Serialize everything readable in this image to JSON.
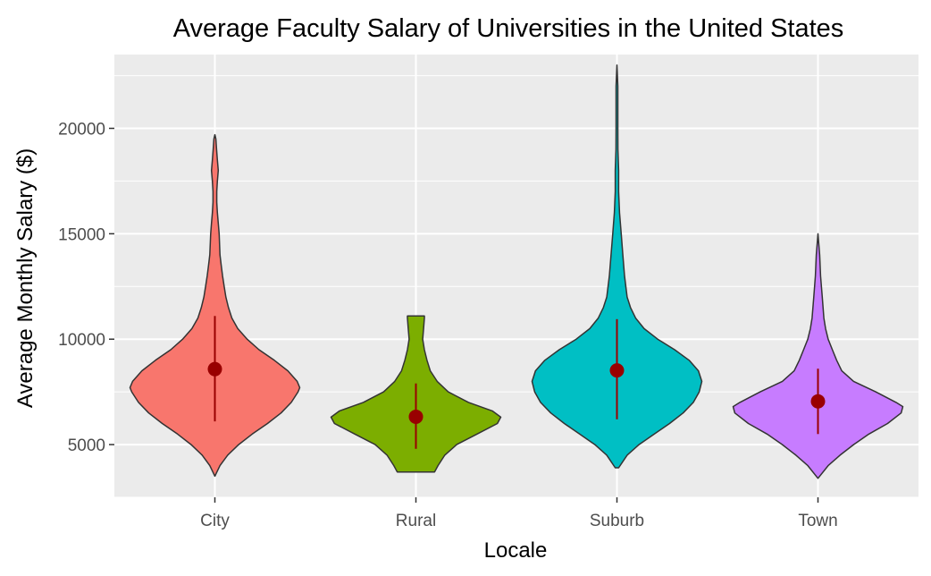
{
  "chart_data": {
    "type": "violin",
    "title": "Average Faculty Salary of Universities in the United States",
    "xlabel": "Locale",
    "ylabel": "Average Monthly Salary ($)",
    "categories": [
      "City",
      "Rural",
      "Suburb",
      "Town"
    ],
    "ylim": [
      2500,
      23500
    ],
    "yticks": [
      5000,
      10000,
      15000,
      20000
    ],
    "yticks_labels": [
      "5000",
      "10000",
      "15000",
      "20000"
    ],
    "grid": true,
    "legend": "none",
    "point_color": "#990000",
    "background_color": "#ebebeb",
    "series": [
      {
        "category": "City",
        "color": "#f8766d",
        "mean": 8580,
        "lower": 6100,
        "upper": 11100,
        "profile": [
          [
            3500,
            0.0
          ],
          [
            4000,
            0.06
          ],
          [
            4500,
            0.15
          ],
          [
            5000,
            0.28
          ],
          [
            5500,
            0.44
          ],
          [
            6000,
            0.62
          ],
          [
            6500,
            0.78
          ],
          [
            7000,
            0.9
          ],
          [
            7500,
            0.98
          ],
          [
            7700,
            1.0
          ],
          [
            8000,
            0.97
          ],
          [
            8500,
            0.86
          ],
          [
            9000,
            0.7
          ],
          [
            9500,
            0.52
          ],
          [
            10000,
            0.38
          ],
          [
            10500,
            0.27
          ],
          [
            11000,
            0.2
          ],
          [
            11500,
            0.16
          ],
          [
            12000,
            0.13
          ],
          [
            12500,
            0.11
          ],
          [
            13000,
            0.09
          ],
          [
            13500,
            0.075
          ],
          [
            14000,
            0.06
          ],
          [
            15000,
            0.05
          ],
          [
            15500,
            0.04
          ],
          [
            16000,
            0.03
          ],
          [
            16500,
            0.022
          ],
          [
            17000,
            0.022
          ],
          [
            17500,
            0.03
          ],
          [
            18000,
            0.04
          ],
          [
            18500,
            0.03
          ],
          [
            19000,
            0.02
          ],
          [
            19500,
            0.012
          ],
          [
            19700,
            0.0
          ]
        ]
      },
      {
        "category": "Rural",
        "color": "#7cae00",
        "mean": 6320,
        "lower": 4800,
        "upper": 7900,
        "profile": [
          [
            3700,
            0.22
          ],
          [
            4000,
            0.26
          ],
          [
            4500,
            0.34
          ],
          [
            5000,
            0.48
          ],
          [
            5500,
            0.72
          ],
          [
            6000,
            0.96
          ],
          [
            6300,
            1.0
          ],
          [
            6600,
            0.9
          ],
          [
            7000,
            0.62
          ],
          [
            7500,
            0.38
          ],
          [
            8000,
            0.25
          ],
          [
            8500,
            0.17
          ],
          [
            9000,
            0.13
          ],
          [
            9500,
            0.1
          ],
          [
            10000,
            0.08
          ],
          [
            10500,
            0.09
          ],
          [
            11000,
            0.1
          ],
          [
            11100,
            0.1
          ]
        ]
      },
      {
        "category": "Suburb",
        "color": "#00bfc4",
        "mean": 8520,
        "lower": 6200,
        "upper": 10950,
        "profile": [
          [
            3900,
            0.02
          ],
          [
            4500,
            0.12
          ],
          [
            5000,
            0.26
          ],
          [
            5500,
            0.44
          ],
          [
            6000,
            0.62
          ],
          [
            6500,
            0.78
          ],
          [
            7000,
            0.9
          ],
          [
            7500,
            0.97
          ],
          [
            8000,
            1.0
          ],
          [
            8500,
            0.96
          ],
          [
            9000,
            0.85
          ],
          [
            9500,
            0.68
          ],
          [
            10000,
            0.48
          ],
          [
            10500,
            0.32
          ],
          [
            11000,
            0.22
          ],
          [
            11500,
            0.16
          ],
          [
            12000,
            0.12
          ],
          [
            13000,
            0.09
          ],
          [
            14000,
            0.07
          ],
          [
            15000,
            0.05
          ],
          [
            16000,
            0.03
          ],
          [
            17000,
            0.02
          ],
          [
            18000,
            0.02
          ],
          [
            19000,
            0.012
          ],
          [
            20000,
            0.01
          ],
          [
            21000,
            0.01
          ],
          [
            22000,
            0.01
          ],
          [
            23000,
            0.0
          ]
        ]
      },
      {
        "category": "Town",
        "color": "#c77cff",
        "mean": 7050,
        "lower": 5500,
        "upper": 8600,
        "profile": [
          [
            3400,
            0.0
          ],
          [
            4000,
            0.12
          ],
          [
            4500,
            0.26
          ],
          [
            5000,
            0.42
          ],
          [
            5500,
            0.6
          ],
          [
            6000,
            0.82
          ],
          [
            6500,
            0.98
          ],
          [
            6800,
            1.0
          ],
          [
            7000,
            0.92
          ],
          [
            7500,
            0.68
          ],
          [
            8000,
            0.42
          ],
          [
            8500,
            0.28
          ],
          [
            9000,
            0.22
          ],
          [
            9500,
            0.17
          ],
          [
            10000,
            0.12
          ],
          [
            10500,
            0.09
          ],
          [
            11000,
            0.07
          ],
          [
            12000,
            0.05
          ],
          [
            13000,
            0.03
          ],
          [
            14000,
            0.02
          ],
          [
            15000,
            0.0
          ]
        ]
      }
    ]
  }
}
